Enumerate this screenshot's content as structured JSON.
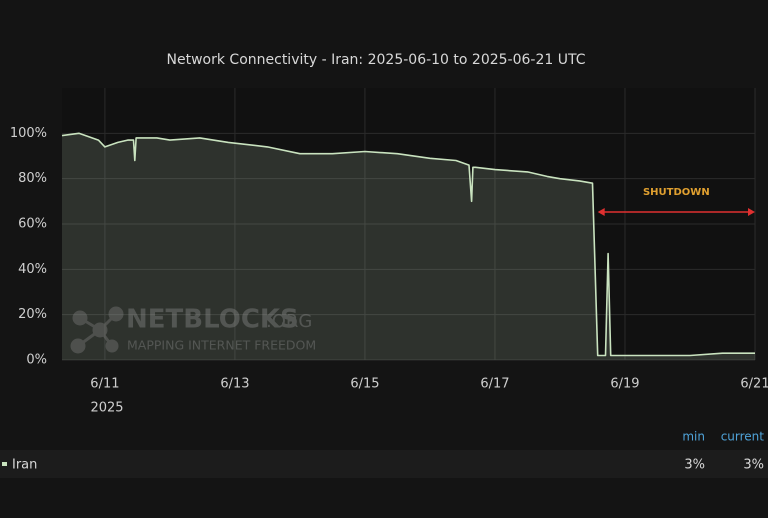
{
  "chart_data": {
    "type": "area",
    "title": "Network Connectivity - Iran: 2025-06-10 to 2025-06-21 UTC",
    "xlim": [
      10.34,
      21.0
    ],
    "xticks": [
      {
        "value": 11,
        "label": "6/11"
      },
      {
        "value": 13,
        "label": "6/13"
      },
      {
        "value": 15,
        "label": "6/15"
      },
      {
        "value": 17,
        "label": "6/17"
      },
      {
        "value": 19,
        "label": "6/19"
      },
      {
        "value": 21,
        "label": "6/21"
      }
    ],
    "x_year_label": "2025",
    "ylim": [
      0,
      120
    ],
    "yticks": [
      {
        "value": 0,
        "label": "0%"
      },
      {
        "value": 20,
        "label": "20%"
      },
      {
        "value": 40,
        "label": "40%"
      },
      {
        "value": 60,
        "label": "60%"
      },
      {
        "value": 80,
        "label": "80%"
      },
      {
        "value": 100,
        "label": "100%"
      }
    ],
    "grid": true,
    "series": [
      {
        "name": "Iran",
        "color": "#c9e3bf",
        "x": [
          10.34,
          10.6,
          10.9,
          11.0,
          11.2,
          11.35,
          11.44,
          11.46,
          11.48,
          11.8,
          12.0,
          12.46,
          12.9,
          13.5,
          14.0,
          14.5,
          15.0,
          15.5,
          16.0,
          16.4,
          16.6,
          16.64,
          16.66,
          16.7,
          17.0,
          17.5,
          17.8,
          18.0,
          18.3,
          18.5,
          18.58,
          18.7,
          18.74,
          18.78,
          19.0,
          19.5,
          20.0,
          20.5,
          21.0
        ],
        "values": [
          99,
          100,
          97,
          94,
          96,
          97,
          97,
          88,
          98,
          98,
          97,
          98,
          96,
          94,
          91,
          91,
          92,
          91,
          89,
          88,
          86,
          70,
          85,
          85,
          84,
          83,
          81,
          80,
          79,
          78,
          2,
          2,
          47,
          2,
          2,
          2,
          2,
          3,
          3
        ]
      }
    ],
    "annotation": {
      "text": "SHUTDOWN",
      "start": 18.58,
      "end": 21.0,
      "color": "#e0a030",
      "arrow_color": "#e03030"
    },
    "watermark": {
      "title": "NETBLOCKS",
      "suffix": ".ORG",
      "tagline": "MAPPING INTERNET FREEDOM"
    },
    "legend_stats": [
      {
        "name": "min",
        "label": "3%"
      },
      {
        "name": "current",
        "label": "3%"
      }
    ]
  }
}
